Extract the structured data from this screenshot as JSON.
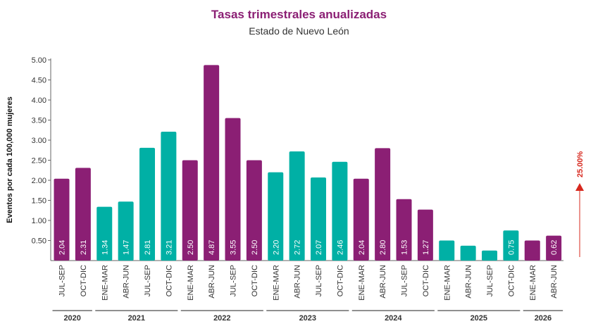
{
  "chart_data": {
    "type": "bar",
    "title": "Tasas trimestrales anualizadas",
    "subtitle": "Estado de Nuevo León",
    "ylabel": "Eventos por cada 100,000 mujeres",
    "xlabel": "",
    "ylim": [
      0,
      5.0
    ],
    "yticks": [
      "0.50",
      "1.00",
      "1.50",
      "2.00",
      "2.50",
      "3.00",
      "3.50",
      "4.00",
      "4.50",
      "5.00"
    ],
    "grid": false,
    "categories": [
      "JUL-SEP",
      "OCT-DIC",
      "ENE-MAR",
      "ABR-JUN",
      "JUL-SEP",
      "OCT-DIC",
      "ENE-MAR",
      "ABR-JUN",
      "JUL-SEP",
      "OCT-DIC",
      "ENE-MAR",
      "ABR-JUN",
      "JUL-SEP",
      "OCT-DIC",
      "ENE-MAR",
      "ABR-JUN",
      "JUL-SEP",
      "OCT-DIC",
      "ENE-MAR",
      "ABR-JUN",
      "JUL-SEP",
      "OCT-DIC",
      "ENE-MAR",
      "ABR-JUN"
    ],
    "values": [
      2.04,
      2.31,
      1.34,
      1.47,
      2.81,
      3.21,
      2.5,
      4.87,
      3.55,
      2.5,
      2.2,
      2.72,
      2.07,
      2.46,
      2.04,
      2.8,
      1.53,
      1.27,
      0.5,
      0.37,
      0.25,
      0.75,
      0.5,
      0.62
    ],
    "labels": [
      "2.04",
      "2.31",
      "1.34",
      "1.47",
      "2.81",
      "3.21",
      "2.50",
      "4.87",
      "3.55",
      "2.50",
      "2.20",
      "2.72",
      "2.07",
      "2.46",
      "2.04",
      "2.80",
      "1.53",
      "1.27",
      "",
      "",
      "",
      "0.75",
      "",
      "0.62"
    ],
    "bar_colors": [
      "#8b1f74",
      "#8b1f74",
      "#00b0a5",
      "#00b0a5",
      "#00b0a5",
      "#00b0a5",
      "#8b1f74",
      "#8b1f74",
      "#8b1f74",
      "#8b1f74",
      "#00b0a5",
      "#00b0a5",
      "#00b0a5",
      "#00b0a5",
      "#8b1f74",
      "#8b1f74",
      "#8b1f74",
      "#8b1f74",
      "#00b0a5",
      "#00b0a5",
      "#00b0a5",
      "#00b0a5",
      "#8b1f74",
      "#8b1f74"
    ],
    "years": [
      {
        "label": "2020",
        "start": 0,
        "count": 2
      },
      {
        "label": "2021",
        "start": 2,
        "count": 4
      },
      {
        "label": "2022",
        "start": 6,
        "count": 4
      },
      {
        "label": "2023",
        "start": 10,
        "count": 4
      },
      {
        "label": "2024",
        "start": 14,
        "count": 4
      },
      {
        "label": "2025",
        "start": 18,
        "count": 4
      },
      {
        "label": "2026",
        "start": 22,
        "count": 2
      }
    ],
    "change": {
      "label": "25.00%",
      "direction": "up"
    },
    "colors": {
      "purple": "#8b1f74",
      "teal": "#00b0a5",
      "title": "#8b1f74",
      "change": "#d7281e",
      "axis": "#666666"
    }
  }
}
